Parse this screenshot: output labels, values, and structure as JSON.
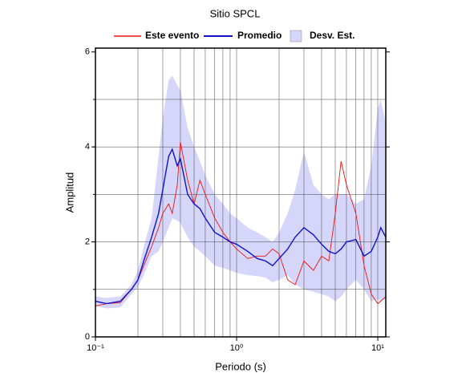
{
  "chart_data": {
    "type": "line",
    "title": "Sitio SPCL",
    "x_label": "Periodo (s)",
    "y_label": "Amplitud",
    "x_scale": "log",
    "xlim": [
      0.1,
      11.4
    ],
    "ylim": [
      0,
      6.08
    ],
    "xticks": [
      {
        "value": 0.1,
        "label": "10⁻¹"
      },
      {
        "value": 1,
        "label": "10⁰"
      },
      {
        "value": 10,
        "label": "10¹"
      }
    ],
    "yticks": [
      0,
      2,
      4,
      6
    ],
    "xgrid": [
      0.2,
      0.3,
      0.4,
      0.5,
      0.6,
      0.7,
      0.8,
      0.9,
      1,
      2,
      3,
      4,
      5,
      6,
      7,
      8,
      9,
      10
    ],
    "ygrid": [
      1,
      2,
      3,
      4,
      5
    ],
    "legend": "top",
    "x": [
      0.1,
      0.12,
      0.15,
      0.18,
      0.2,
      0.22,
      0.25,
      0.28,
      0.3,
      0.33,
      0.35,
      0.38,
      0.4,
      0.45,
      0.5,
      0.55,
      0.6,
      0.7,
      0.8,
      0.9,
      1.0,
      1.2,
      1.4,
      1.6,
      1.8,
      2.0,
      2.3,
      2.6,
      3.0,
      3.5,
      4.0,
      4.5,
      5.0,
      5.5,
      6.0,
      7.0,
      8.0,
      9.0,
      10,
      10.5,
      11.4
    ],
    "series": [
      {
        "name": "Este evento",
        "color": "#ee1111",
        "values": [
          0.65,
          0.7,
          0.72,
          1.0,
          1.2,
          1.5,
          1.9,
          2.3,
          2.6,
          2.8,
          2.6,
          3.2,
          4.1,
          3.3,
          2.8,
          3.3,
          3.0,
          2.5,
          2.2,
          2.0,
          1.85,
          1.65,
          1.7,
          1.7,
          1.85,
          1.75,
          1.2,
          1.1,
          1.6,
          1.4,
          1.7,
          1.6,
          2.6,
          3.7,
          3.2,
          2.6,
          1.5,
          0.9,
          0.7,
          0.75,
          0.85
        ]
      },
      {
        "name": "Promedio",
        "color": "#1111cc",
        "values": [
          0.75,
          0.7,
          0.75,
          1.0,
          1.2,
          1.6,
          2.1,
          2.6,
          3.1,
          3.8,
          3.95,
          3.6,
          3.75,
          3.0,
          2.8,
          2.7,
          2.5,
          2.2,
          2.1,
          2.0,
          1.95,
          1.8,
          1.65,
          1.6,
          1.5,
          1.65,
          1.85,
          2.1,
          2.3,
          2.15,
          1.95,
          1.8,
          1.75,
          1.85,
          2.0,
          2.05,
          1.7,
          1.8,
          2.1,
          2.3,
          2.1
        ]
      },
      {
        "name": "Desv. Est.",
        "color": "#d6d6fa",
        "upper": [
          0.85,
          0.82,
          0.85,
          1.1,
          1.4,
          1.9,
          2.5,
          3.8,
          4.6,
          5.4,
          5.5,
          5.3,
          5.2,
          4.4,
          4.0,
          3.7,
          3.4,
          3.0,
          2.8,
          2.6,
          2.5,
          2.3,
          2.2,
          2.1,
          2.0,
          2.2,
          2.6,
          3.1,
          3.9,
          3.2,
          3.0,
          2.9,
          3.0,
          3.0,
          3.0,
          2.8,
          2.9,
          3.6,
          4.8,
          5.0,
          4.5
        ],
        "lower": [
          0.65,
          0.6,
          0.62,
          0.9,
          1.05,
          1.3,
          1.7,
          1.8,
          2.0,
          2.3,
          2.5,
          2.45,
          2.4,
          2.1,
          1.9,
          1.8,
          1.7,
          1.5,
          1.45,
          1.4,
          1.35,
          1.3,
          1.28,
          1.25,
          1.15,
          1.2,
          1.3,
          1.1,
          1.0,
          0.95,
          0.9,
          0.85,
          0.75,
          0.85,
          1.0,
          1.2,
          1.0,
          0.75,
          0.8,
          0.75,
          0.8
        ]
      }
    ]
  }
}
